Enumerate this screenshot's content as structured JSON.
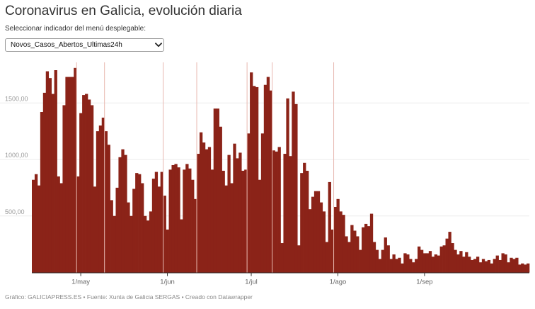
{
  "header": {
    "title": "Coronavirus en Galicia, evolución diaria",
    "subtitle": "Seleccionar indicador del menú desplegable:"
  },
  "dropdown": {
    "selected": "Novos_Casos_Abertos_Ultimas24h",
    "icon": "chevron-down-icon"
  },
  "footer": {
    "text": "Gráfico: GALICIAPRESS.ES • Fuente: Xunta de Galicia SERGAS • Creado con Datawrapper"
  },
  "colors": {
    "bar": "#8b2318",
    "grid": "#ebebeb",
    "month_line": "#e8b8b0"
  },
  "chart_data": {
    "type": "bar",
    "title": "Coronavirus en Galicia, evolución diaria",
    "series_name": "Novos_Casos_Abertos_Ultimas24h",
    "ylim": [
      0,
      1900
    ],
    "yticks": [
      500,
      1000,
      1500
    ],
    "ytick_labels": [
      "500,00",
      "1000,00",
      "1500,00"
    ],
    "x_start": "2020-04-15",
    "xticks": [
      {
        "index": 17,
        "label": "1/may"
      },
      {
        "index": 48,
        "label": "1/jun"
      },
      {
        "index": 78,
        "label": "1/jul"
      },
      {
        "index": 109,
        "label": "1/ago"
      },
      {
        "index": 140,
        "label": "1/sep"
      }
    ],
    "month_boundaries": [
      16,
      26,
      47,
      59,
      77,
      86,
      108
    ],
    "values": [
      820,
      870,
      770,
      1420,
      1590,
      1780,
      1720,
      1580,
      1790,
      850,
      790,
      1480,
      1730,
      1730,
      1730,
      1810,
      850,
      1410,
      1570,
      1580,
      1530,
      1480,
      760,
      1250,
      1300,
      1370,
      1250,
      1130,
      640,
      500,
      750,
      1020,
      1090,
      1040,
      620,
      500,
      740,
      880,
      870,
      790,
      500,
      460,
      540,
      830,
      890,
      760,
      890,
      680,
      380,
      910,
      950,
      960,
      930,
      470,
      910,
      960,
      920,
      820,
      650,
      1050,
      1240,
      1150,
      1090,
      1110,
      910,
      1450,
      1450,
      1290,
      900,
      770,
      1040,
      790,
      1140,
      1010,
      1060,
      900,
      910,
      1230,
      1770,
      1650,
      1640,
      820,
      1230,
      1660,
      1730,
      1610,
      1080,
      1070,
      1110,
      260,
      1050,
      1540,
      1030,
      1600,
      1490,
      240,
      880,
      970,
      900,
      560,
      670,
      720,
      720,
      620,
      540,
      270,
      800,
      380,
      580,
      650,
      540,
      510,
      320,
      270,
      420,
      370,
      320,
      200,
      400,
      430,
      410,
      520,
      270,
      200,
      120,
      200,
      310,
      240,
      120,
      160,
      120,
      130,
      80,
      170,
      160,
      120,
      90,
      120,
      230,
      200,
      170,
      170,
      190,
      140,
      160,
      150,
      230,
      240,
      300,
      360,
      260,
      200,
      160,
      190,
      140,
      180,
      140,
      110,
      120,
      140,
      90,
      120,
      100,
      110,
      80,
      120,
      150,
      110,
      170,
      160,
      90,
      130,
      120,
      130,
      70,
      80,
      70,
      80
    ]
  }
}
